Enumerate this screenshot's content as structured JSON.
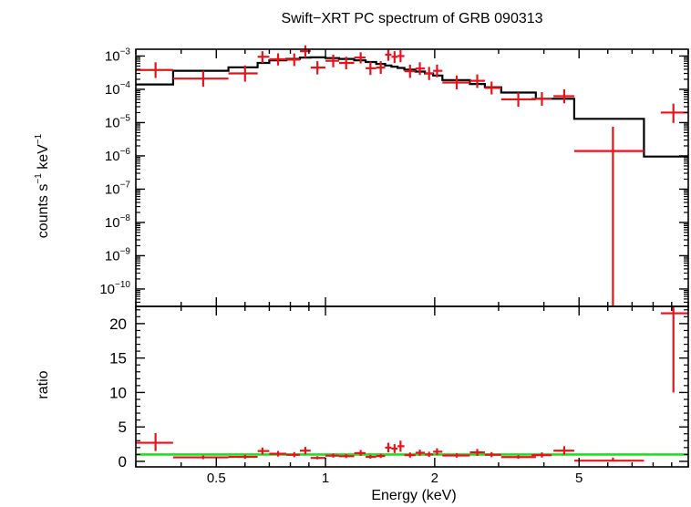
{
  "chart_data": [
    {
      "type": "scatter",
      "title": "Swift−XRT PC spectrum of GRB 090313",
      "xlabel": "Energy (keV)",
      "ylabel_main": "counts s",
      "ylabel_sup1": "−1",
      "ylabel_mid": " keV",
      "ylabel_sup2": "−1",
      "x_scale": "log",
      "y_scale": "log",
      "xlim": [
        0.3,
        10
      ],
      "ylim": [
        3e-11,
        0.0016
      ],
      "x_ticks": [
        {
          "value": 0.5,
          "label": "0.5"
        },
        {
          "value": 1,
          "label": "1"
        },
        {
          "value": 2,
          "label": "2"
        },
        {
          "value": 5,
          "label": "5"
        }
      ],
      "y_ticks": [
        {
          "value": 0.001,
          "base": "10",
          "exp": "−3"
        },
        {
          "value": 0.0001,
          "base": "10",
          "exp": "−4"
        },
        {
          "value": 1e-05,
          "base": "10",
          "exp": "−5"
        },
        {
          "value": 1e-06,
          "base": "10",
          "exp": "−6"
        },
        {
          "value": 1e-07,
          "base": "10",
          "exp": "−7"
        },
        {
          "value": 1e-08,
          "base": "10",
          "exp": "−8"
        },
        {
          "value": 1e-09,
          "base": "10",
          "exp": "−9"
        },
        {
          "value": 1e-10,
          "base": "10",
          "exp": "−10"
        }
      ],
      "series": [
        {
          "kind": "data",
          "color": "#e8121a",
          "points": [
            {
              "x": 0.34,
              "xlo": 0.3,
              "xhi": 0.38,
              "y": 0.00038,
              "ylo": 0.00022,
              "yhi": 0.00065
            },
            {
              "x": 0.46,
              "xlo": 0.38,
              "xhi": 0.54,
              "y": 0.00021,
              "ylo": 0.00012,
              "yhi": 0.00036
            },
            {
              "x": 0.6,
              "xlo": 0.54,
              "xhi": 0.65,
              "y": 0.0003,
              "ylo": 0.00017,
              "yhi": 0.00052
            },
            {
              "x": 0.67,
              "xlo": 0.65,
              "xhi": 0.7,
              "y": 0.00095,
              "ylo": 0.00062,
              "yhi": 0.0014
            },
            {
              "x": 0.74,
              "xlo": 0.7,
              "xhi": 0.78,
              "y": 0.0008,
              "ylo": 0.00052,
              "yhi": 0.0012
            },
            {
              "x": 0.82,
              "xlo": 0.78,
              "xhi": 0.85,
              "y": 0.00078,
              "ylo": 0.0005,
              "yhi": 0.0012
            },
            {
              "x": 0.88,
              "xlo": 0.85,
              "xhi": 0.91,
              "y": 0.0014,
              "ylo": 0.0009,
              "yhi": 0.0021
            },
            {
              "x": 0.95,
              "xlo": 0.91,
              "xhi": 1.0,
              "y": 0.00045,
              "ylo": 0.00028,
              "yhi": 0.0007
            },
            {
              "x": 1.05,
              "xlo": 1.0,
              "xhi": 1.09,
              "y": 0.00072,
              "ylo": 0.00046,
              "yhi": 0.0011
            },
            {
              "x": 1.14,
              "xlo": 1.09,
              "xhi": 1.2,
              "y": 0.00062,
              "ylo": 0.0004,
              "yhi": 0.00095
            },
            {
              "x": 1.25,
              "xlo": 1.2,
              "xhi": 1.29,
              "y": 0.0009,
              "ylo": 0.0006,
              "yhi": 0.0013
            },
            {
              "x": 1.33,
              "xlo": 1.29,
              "xhi": 1.38,
              "y": 0.00043,
              "ylo": 0.00027,
              "yhi": 0.00068
            },
            {
              "x": 1.42,
              "xlo": 1.38,
              "xhi": 1.46,
              "y": 0.00045,
              "ylo": 0.00029,
              "yhi": 0.0007
            },
            {
              "x": 1.49,
              "xlo": 1.46,
              "xhi": 1.52,
              "y": 0.0011,
              "ylo": 0.00072,
              "yhi": 0.0016
            },
            {
              "x": 1.55,
              "xlo": 1.52,
              "xhi": 1.58,
              "y": 0.00095,
              "ylo": 0.00062,
              "yhi": 0.0014
            },
            {
              "x": 1.61,
              "xlo": 1.58,
              "xhi": 1.65,
              "y": 0.001,
              "ylo": 0.00065,
              "yhi": 0.0015
            },
            {
              "x": 1.71,
              "xlo": 1.65,
              "xhi": 1.77,
              "y": 0.00035,
              "ylo": 0.00022,
              "yhi": 0.00055
            },
            {
              "x": 1.82,
              "xlo": 1.77,
              "xhi": 1.88,
              "y": 0.00042,
              "ylo": 0.00027,
              "yhi": 0.00065
            },
            {
              "x": 1.93,
              "xlo": 1.88,
              "xhi": 1.98,
              "y": 0.0003,
              "ylo": 0.00019,
              "yhi": 0.00047
            },
            {
              "x": 2.03,
              "xlo": 1.98,
              "xhi": 2.1,
              "y": 0.00036,
              "ylo": 0.00023,
              "yhi": 0.00055
            },
            {
              "x": 2.3,
              "xlo": 2.1,
              "xhi": 2.5,
              "y": 0.00016,
              "ylo": 0.0001,
              "yhi": 0.00026
            },
            {
              "x": 2.62,
              "xlo": 2.5,
              "xhi": 2.75,
              "y": 0.00018,
              "ylo": 0.00011,
              "yhi": 0.00028
            },
            {
              "x": 2.87,
              "xlo": 2.75,
              "xhi": 3.05,
              "y": 0.00011,
              "ylo": 7e-05,
              "yhi": 0.00017
            },
            {
              "x": 3.4,
              "xlo": 3.05,
              "xhi": 3.8,
              "y": 5e-05,
              "ylo": 3e-05,
              "yhi": 8e-05
            },
            {
              "x": 3.95,
              "xlo": 3.7,
              "xhi": 4.2,
              "y": 5.2e-05,
              "ylo": 3.2e-05,
              "yhi": 8.2e-05
            },
            {
              "x": 4.55,
              "xlo": 4.25,
              "xhi": 4.85,
              "y": 6.2e-05,
              "ylo": 3.8e-05,
              "yhi": 0.0001
            },
            {
              "x": 6.2,
              "xlo": 4.85,
              "xhi": 7.55,
              "y": 1.4e-06,
              "ylo": 3e-11,
              "yhi": 7.5e-06
            },
            {
              "x": 9.1,
              "xlo": 8.4,
              "xhi": 10,
              "y": 2e-05,
              "ylo": 9.8e-06,
              "yhi": 3.7e-05
            }
          ]
        },
        {
          "kind": "model",
          "color": "#000000",
          "steps": [
            {
              "xlo": 0.3,
              "xhi": 0.38,
              "y": 0.00014
            },
            {
              "xlo": 0.38,
              "xhi": 0.54,
              "y": 0.00036
            },
            {
              "xlo": 0.54,
              "xhi": 0.65,
              "y": 0.00046
            },
            {
              "xlo": 0.65,
              "xhi": 0.7,
              "y": 0.00062
            },
            {
              "xlo": 0.7,
              "xhi": 0.78,
              "y": 0.00074
            },
            {
              "xlo": 0.78,
              "xhi": 0.85,
              "y": 0.00082
            },
            {
              "xlo": 0.85,
              "xhi": 0.91,
              "y": 0.0009
            },
            {
              "xlo": 0.91,
              "xhi": 1.0,
              "y": 0.00091
            },
            {
              "xlo": 1.0,
              "xhi": 1.09,
              "y": 0.00087
            },
            {
              "xlo": 1.09,
              "xhi": 1.2,
              "y": 0.00082
            },
            {
              "xlo": 1.2,
              "xhi": 1.29,
              "y": 0.00074
            },
            {
              "xlo": 1.29,
              "xhi": 1.38,
              "y": 0.00066
            },
            {
              "xlo": 1.38,
              "xhi": 1.46,
              "y": 0.00058
            },
            {
              "xlo": 1.46,
              "xhi": 1.52,
              "y": 0.00052
            },
            {
              "xlo": 1.52,
              "xhi": 1.58,
              "y": 0.00048
            },
            {
              "xlo": 1.58,
              "xhi": 1.65,
              "y": 0.00044
            },
            {
              "xlo": 1.65,
              "xhi": 1.77,
              "y": 0.00039
            },
            {
              "xlo": 1.77,
              "xhi": 1.88,
              "y": 0.00034
            },
            {
              "xlo": 1.88,
              "xhi": 1.98,
              "y": 0.0003
            },
            {
              "xlo": 1.98,
              "xhi": 2.1,
              "y": 0.00026
            },
            {
              "xlo": 2.1,
              "xhi": 2.5,
              "y": 0.00019
            },
            {
              "xlo": 2.5,
              "xhi": 2.75,
              "y": 0.000145
            },
            {
              "xlo": 2.75,
              "xhi": 3.05,
              "y": 0.000115
            },
            {
              "xlo": 3.05,
              "xhi": 3.8,
              "y": 8e-05
            },
            {
              "xlo": 3.8,
              "xhi": 4.85,
              "y": 5.2e-05
            },
            {
              "xlo": 4.85,
              "xhi": 7.55,
              "y": 1.3e-05
            },
            {
              "xlo": 7.55,
              "xhi": 10,
              "y": 9.5e-07
            }
          ]
        }
      ]
    },
    {
      "type": "scatter",
      "ylabel": "ratio",
      "x_scale": "log",
      "y_scale": "linear",
      "xlim": [
        0.3,
        10
      ],
      "ylim": [
        -0.8,
        22.5
      ],
      "y_ticks": [
        {
          "value": 0,
          "label": "0"
        },
        {
          "value": 5,
          "label": "5"
        },
        {
          "value": 10,
          "label": "10"
        },
        {
          "value": 15,
          "label": "15"
        },
        {
          "value": 20,
          "label": "20"
        }
      ],
      "reference_line": {
        "y": 1,
        "color": "#22dd22"
      },
      "series": [
        {
          "kind": "data",
          "color": "#e8121a",
          "points": [
            {
              "x": 0.34,
              "xlo": 0.3,
              "xhi": 0.38,
              "y": 2.7,
              "ylo": 1.5,
              "yhi": 4.1
            },
            {
              "x": 0.46,
              "xlo": 0.38,
              "xhi": 0.54,
              "y": 0.58,
              "ylo": 0.32,
              "yhi": 0.85
            },
            {
              "x": 0.6,
              "xlo": 0.54,
              "xhi": 0.65,
              "y": 0.65,
              "ylo": 0.38,
              "yhi": 0.95
            },
            {
              "x": 0.67,
              "xlo": 0.65,
              "xhi": 0.7,
              "y": 1.5,
              "ylo": 1.0,
              "yhi": 2.0
            },
            {
              "x": 0.74,
              "xlo": 0.7,
              "xhi": 0.78,
              "y": 1.1,
              "ylo": 0.7,
              "yhi": 1.5
            },
            {
              "x": 0.82,
              "xlo": 0.78,
              "xhi": 0.85,
              "y": 0.95,
              "ylo": 0.6,
              "yhi": 1.35
            },
            {
              "x": 0.88,
              "xlo": 0.85,
              "xhi": 0.91,
              "y": 1.55,
              "ylo": 1.0,
              "yhi": 2.1
            },
            {
              "x": 0.95,
              "xlo": 0.91,
              "xhi": 1.0,
              "y": 0.5,
              "ylo": 0.3,
              "yhi": 0.75
            },
            {
              "x": 1.05,
              "xlo": 1.0,
              "xhi": 1.09,
              "y": 0.83,
              "ylo": 0.55,
              "yhi": 1.15
            },
            {
              "x": 1.14,
              "xlo": 1.09,
              "xhi": 1.2,
              "y": 0.75,
              "ylo": 0.48,
              "yhi": 1.05
            },
            {
              "x": 1.25,
              "xlo": 1.2,
              "xhi": 1.29,
              "y": 1.2,
              "ylo": 0.8,
              "yhi": 1.65
            },
            {
              "x": 1.33,
              "xlo": 1.29,
              "xhi": 1.38,
              "y": 0.65,
              "ylo": 0.4,
              "yhi": 0.95
            },
            {
              "x": 1.42,
              "xlo": 1.38,
              "xhi": 1.46,
              "y": 0.78,
              "ylo": 0.5,
              "yhi": 1.1
            },
            {
              "x": 1.49,
              "xlo": 1.46,
              "xhi": 1.52,
              "y": 2.0,
              "ylo": 1.3,
              "yhi": 2.7
            },
            {
              "x": 1.55,
              "xlo": 1.52,
              "xhi": 1.58,
              "y": 1.85,
              "ylo": 1.2,
              "yhi": 2.5
            },
            {
              "x": 1.61,
              "xlo": 1.58,
              "xhi": 1.65,
              "y": 2.2,
              "ylo": 1.4,
              "yhi": 3.0
            },
            {
              "x": 1.71,
              "xlo": 1.65,
              "xhi": 1.77,
              "y": 0.9,
              "ylo": 0.55,
              "yhi": 1.3
            },
            {
              "x": 1.82,
              "xlo": 1.77,
              "xhi": 1.88,
              "y": 1.25,
              "ylo": 0.8,
              "yhi": 1.7
            },
            {
              "x": 1.93,
              "xlo": 1.88,
              "xhi": 1.98,
              "y": 1.0,
              "ylo": 0.65,
              "yhi": 1.4
            },
            {
              "x": 2.03,
              "xlo": 1.98,
              "xhi": 2.1,
              "y": 1.4,
              "ylo": 0.9,
              "yhi": 1.9
            },
            {
              "x": 2.3,
              "xlo": 2.1,
              "xhi": 2.5,
              "y": 0.85,
              "ylo": 0.55,
              "yhi": 1.2
            },
            {
              "x": 2.62,
              "xlo": 2.5,
              "xhi": 2.75,
              "y": 1.3,
              "ylo": 0.8,
              "yhi": 1.8
            },
            {
              "x": 2.87,
              "xlo": 2.75,
              "xhi": 3.05,
              "y": 0.95,
              "ylo": 0.6,
              "yhi": 1.35
            },
            {
              "x": 3.4,
              "xlo": 3.05,
              "xhi": 3.8,
              "y": 0.62,
              "ylo": 0.38,
              "yhi": 0.9
            },
            {
              "x": 3.95,
              "xlo": 3.7,
              "xhi": 4.2,
              "y": 0.9,
              "ylo": 0.55,
              "yhi": 1.3
            },
            {
              "x": 4.55,
              "xlo": 4.25,
              "xhi": 4.85,
              "y": 1.55,
              "ylo": 0.95,
              "yhi": 2.2
            },
            {
              "x": 6.2,
              "xlo": 4.85,
              "xhi": 7.55,
              "y": 0.1,
              "ylo": 0.0,
              "yhi": 0.55
            },
            {
              "x": 9.1,
              "xlo": 8.4,
              "xhi": 10,
              "y": 21.5,
              "ylo": 10.0,
              "yhi": 22.5
            }
          ]
        }
      ]
    }
  ]
}
